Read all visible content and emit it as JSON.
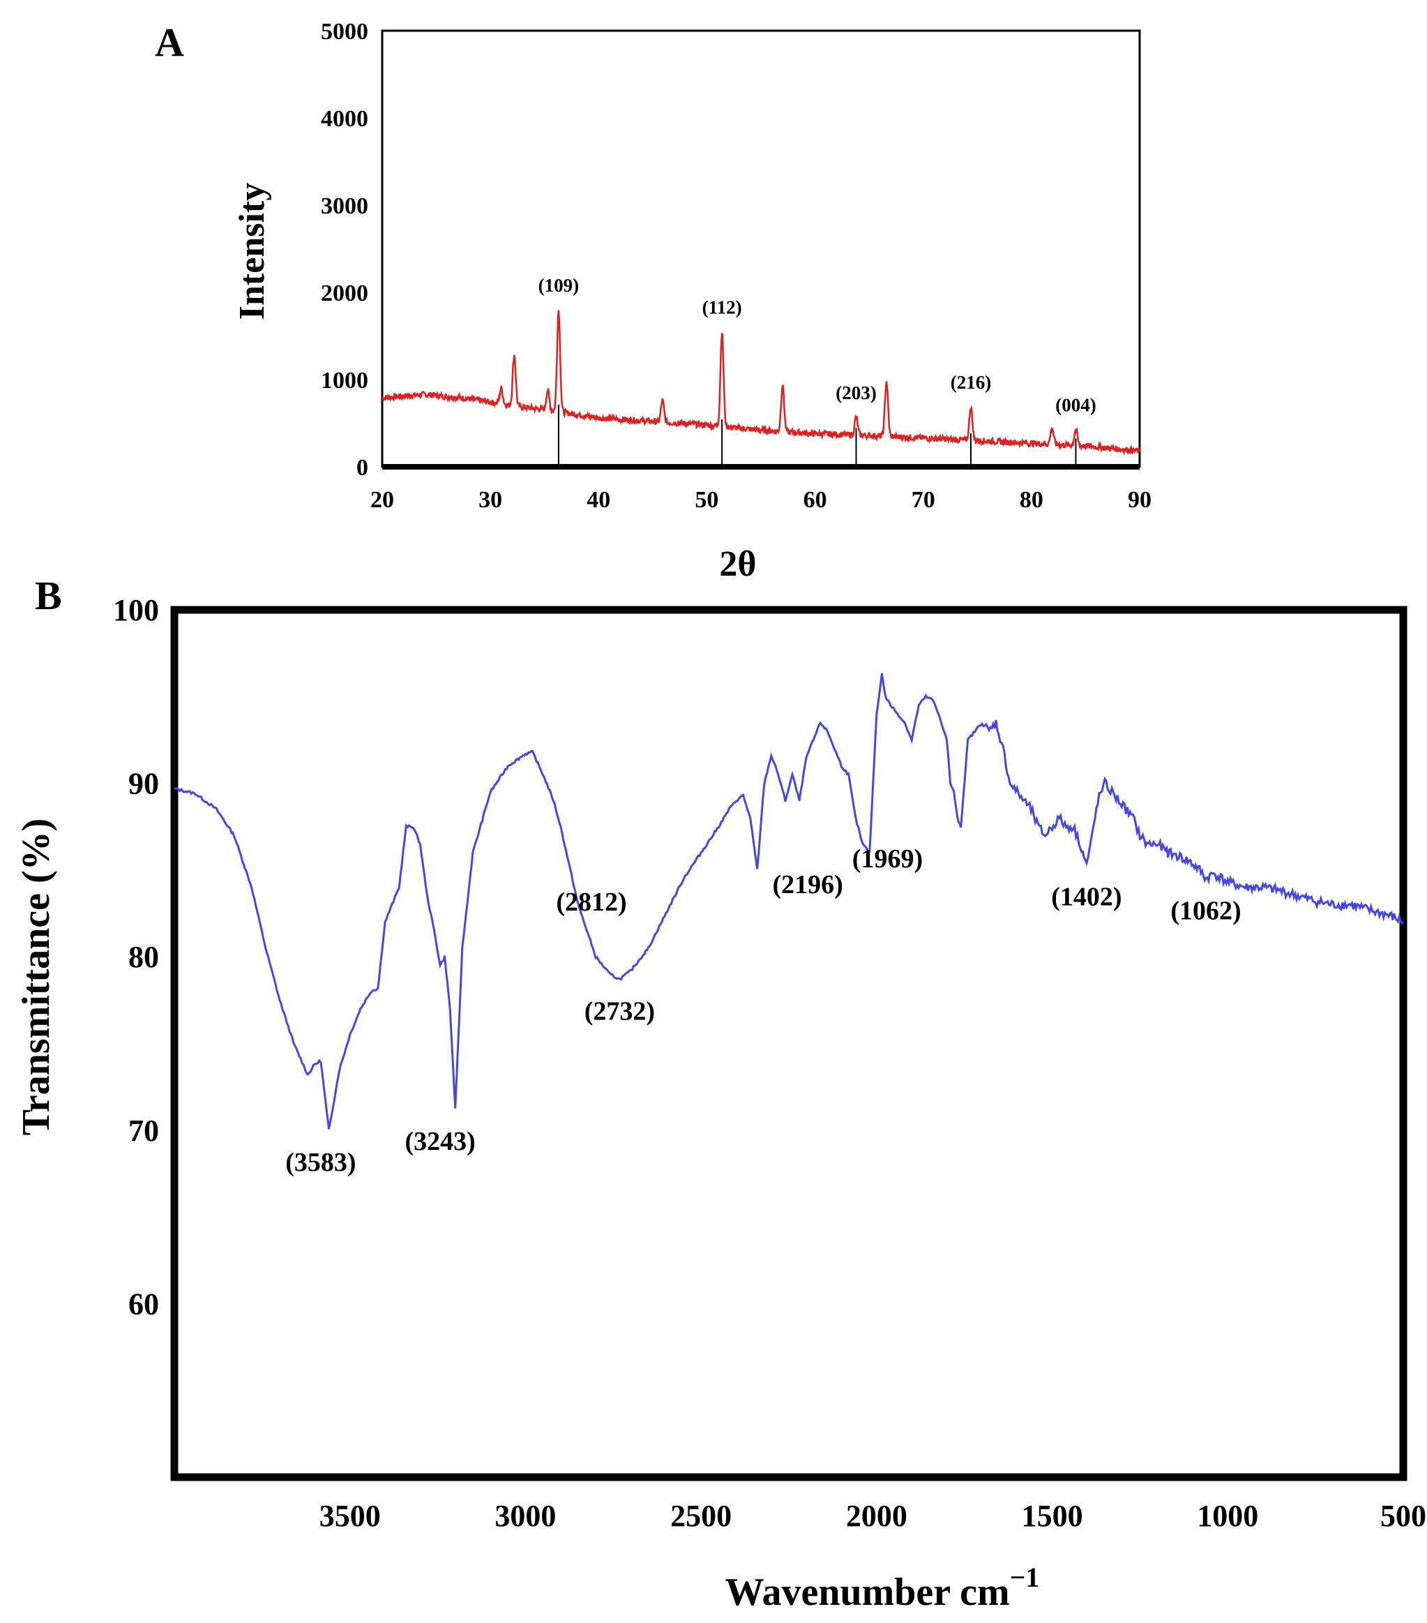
{
  "chart_data": [
    {
      "panel": "A",
      "type": "line",
      "title": "",
      "xlabel": "2θ",
      "ylabel": "Intensity",
      "xlim": [
        20,
        90
      ],
      "ylim": [
        0,
        5000
      ],
      "xticks": [
        20,
        30,
        40,
        50,
        60,
        70,
        80,
        90
      ],
      "yticks": [
        0,
        1000,
        2000,
        3000,
        4000,
        5000
      ],
      "grid": false,
      "line_color": "#e02020",
      "stick_color": "#000000",
      "baseline": {
        "x": [
          20,
          24,
          28,
          32,
          36,
          40,
          45,
          50,
          55,
          60,
          65,
          70,
          75,
          80,
          85,
          90
        ],
        "y": [
          790,
          830,
          780,
          700,
          640,
          560,
          520,
          480,
          420,
          380,
          360,
          330,
          300,
          270,
          240,
          180
        ]
      },
      "peaks": [
        {
          "x": 31.0,
          "y": 900,
          "label": ""
        },
        {
          "x": 32.2,
          "y": 1280,
          "label": ""
        },
        {
          "x": 35.3,
          "y": 880,
          "label": ""
        },
        {
          "x": 36.3,
          "y": 1800,
          "label": "(109)"
        },
        {
          "x": 45.9,
          "y": 760,
          "label": ""
        },
        {
          "x": 51.4,
          "y": 1550,
          "label": "(112)"
        },
        {
          "x": 57.0,
          "y": 940,
          "label": ""
        },
        {
          "x": 63.8,
          "y": 570,
          "label": "(203)"
        },
        {
          "x": 66.6,
          "y": 980,
          "label": ""
        },
        {
          "x": 74.4,
          "y": 690,
          "label": "(216)"
        },
        {
          "x": 81.9,
          "y": 450,
          "label": ""
        },
        {
          "x": 84.1,
          "y": 430,
          "label": "(004)"
        }
      ],
      "stick_positions": [
        36.3,
        51.4,
        63.8,
        74.4,
        84.1
      ]
    },
    {
      "panel": "B",
      "type": "line",
      "title": "",
      "xlabel": "Wavenumber cm",
      "xlabel_superscript": "−1",
      "ylabel": "Transmittance (%)",
      "xlim": [
        4000,
        500
      ],
      "ylim": [
        50,
        100
      ],
      "xticks": [
        3500,
        3000,
        2500,
        2000,
        1500,
        1000,
        500
      ],
      "yticks": [
        60,
        70,
        80,
        90,
        100
      ],
      "grid": false,
      "line_color": "#4646e6",
      "x": [
        4000,
        3940,
        3880,
        3830,
        3780,
        3740,
        3700,
        3660,
        3620,
        3600,
        3583,
        3560,
        3530,
        3500,
        3470,
        3440,
        3420,
        3400,
        3380,
        3360,
        3340,
        3320,
        3300,
        3280,
        3260,
        3243,
        3230,
        3215,
        3200,
        3180,
        3150,
        3100,
        3050,
        3000,
        2980,
        2950,
        2920,
        2900,
        2850,
        2800,
        2760,
        2732,
        2700,
        2650,
        2600,
        2550,
        2500,
        2450,
        2420,
        2400,
        2380,
        2360,
        2350,
        2340,
        2320,
        2300,
        2280,
        2260,
        2240,
        2220,
        2200,
        2180,
        2160,
        2140,
        2120,
        2100,
        2080,
        2060,
        2040,
        2020,
        2000,
        1985,
        1975,
        1960,
        1940,
        1920,
        1900,
        1880,
        1860,
        1840,
        1820,
        1800,
        1790,
        1780,
        1770,
        1760,
        1740,
        1720,
        1700,
        1680,
        1660,
        1640,
        1620,
        1600,
        1580,
        1560,
        1540,
        1520,
        1500,
        1480,
        1460,
        1440,
        1420,
        1402,
        1390,
        1370,
        1350,
        1330,
        1310,
        1290,
        1270,
        1250,
        1230,
        1200,
        1170,
        1140,
        1110,
        1080,
        1062,
        1040,
        1000,
        950,
        900,
        850,
        800,
        750,
        700,
        650,
        600,
        560,
        530,
        500
      ],
      "y": [
        89.7,
        89.4,
        88.5,
        87.0,
        84.0,
        80.5,
        77.5,
        75.0,
        73.2,
        73.8,
        74.0,
        70.0,
        73.5,
        75.5,
        77.0,
        78.0,
        78.2,
        82.0,
        83.0,
        84.0,
        87.5,
        87.5,
        86.5,
        83.5,
        81.5,
        79.5,
        80.0,
        77.0,
        71.2,
        80.5,
        86.0,
        89.5,
        91.0,
        91.7,
        91.8,
        90.5,
        89.0,
        87.5,
        83.0,
        80.0,
        79.0,
        78.7,
        79.2,
        80.5,
        82.5,
        84.5,
        86.0,
        87.5,
        88.5,
        89.0,
        89.3,
        88.0,
        86.5,
        85.0,
        90.0,
        91.6,
        90.5,
        89.0,
        90.5,
        89.0,
        91.5,
        92.5,
        93.5,
        93.0,
        92.0,
        91.0,
        90.5,
        88.0,
        86.5,
        86.0,
        94.0,
        96.3,
        95.0,
        94.5,
        94.0,
        93.5,
        92.5,
        94.5,
        95.0,
        94.8,
        93.8,
        92.5,
        90.0,
        89.5,
        88.0,
        87.5,
        92.5,
        93.0,
        93.5,
        93.0,
        93.5,
        92.0,
        90.0,
        89.5,
        89.0,
        88.5,
        87.5,
        87.0,
        87.5,
        88.0,
        87.5,
        87.5,
        86.5,
        85.3,
        86.5,
        89.0,
        90.0,
        89.5,
        89.0,
        88.5,
        88.0,
        87.0,
        86.5,
        86.5,
        86.0,
        85.8,
        85.5,
        85.0,
        84.5,
        84.8,
        84.3,
        84.0,
        84.0,
        83.8,
        83.5,
        83.2,
        83.0,
        83.0,
        82.7,
        82.5,
        82.3,
        82.0
      ],
      "annotations": [
        {
          "x": 3583,
          "y": 70.0,
          "label": "(3583)"
        },
        {
          "x": 3243,
          "y": 71.2,
          "label": "(3243)"
        },
        {
          "x": 2732,
          "y": 78.7,
          "label": "(2732)"
        },
        {
          "x": 2812,
          "y": 85.0,
          "label": "(2812)"
        },
        {
          "x": 2196,
          "y": 86.0,
          "label": "(2196)"
        },
        {
          "x": 1969,
          "y": 87.5,
          "label": "(1969)"
        },
        {
          "x": 1402,
          "y": 85.3,
          "label": "(1402)"
        },
        {
          "x": 1062,
          "y": 84.5,
          "label": "(1062)"
        }
      ]
    }
  ]
}
